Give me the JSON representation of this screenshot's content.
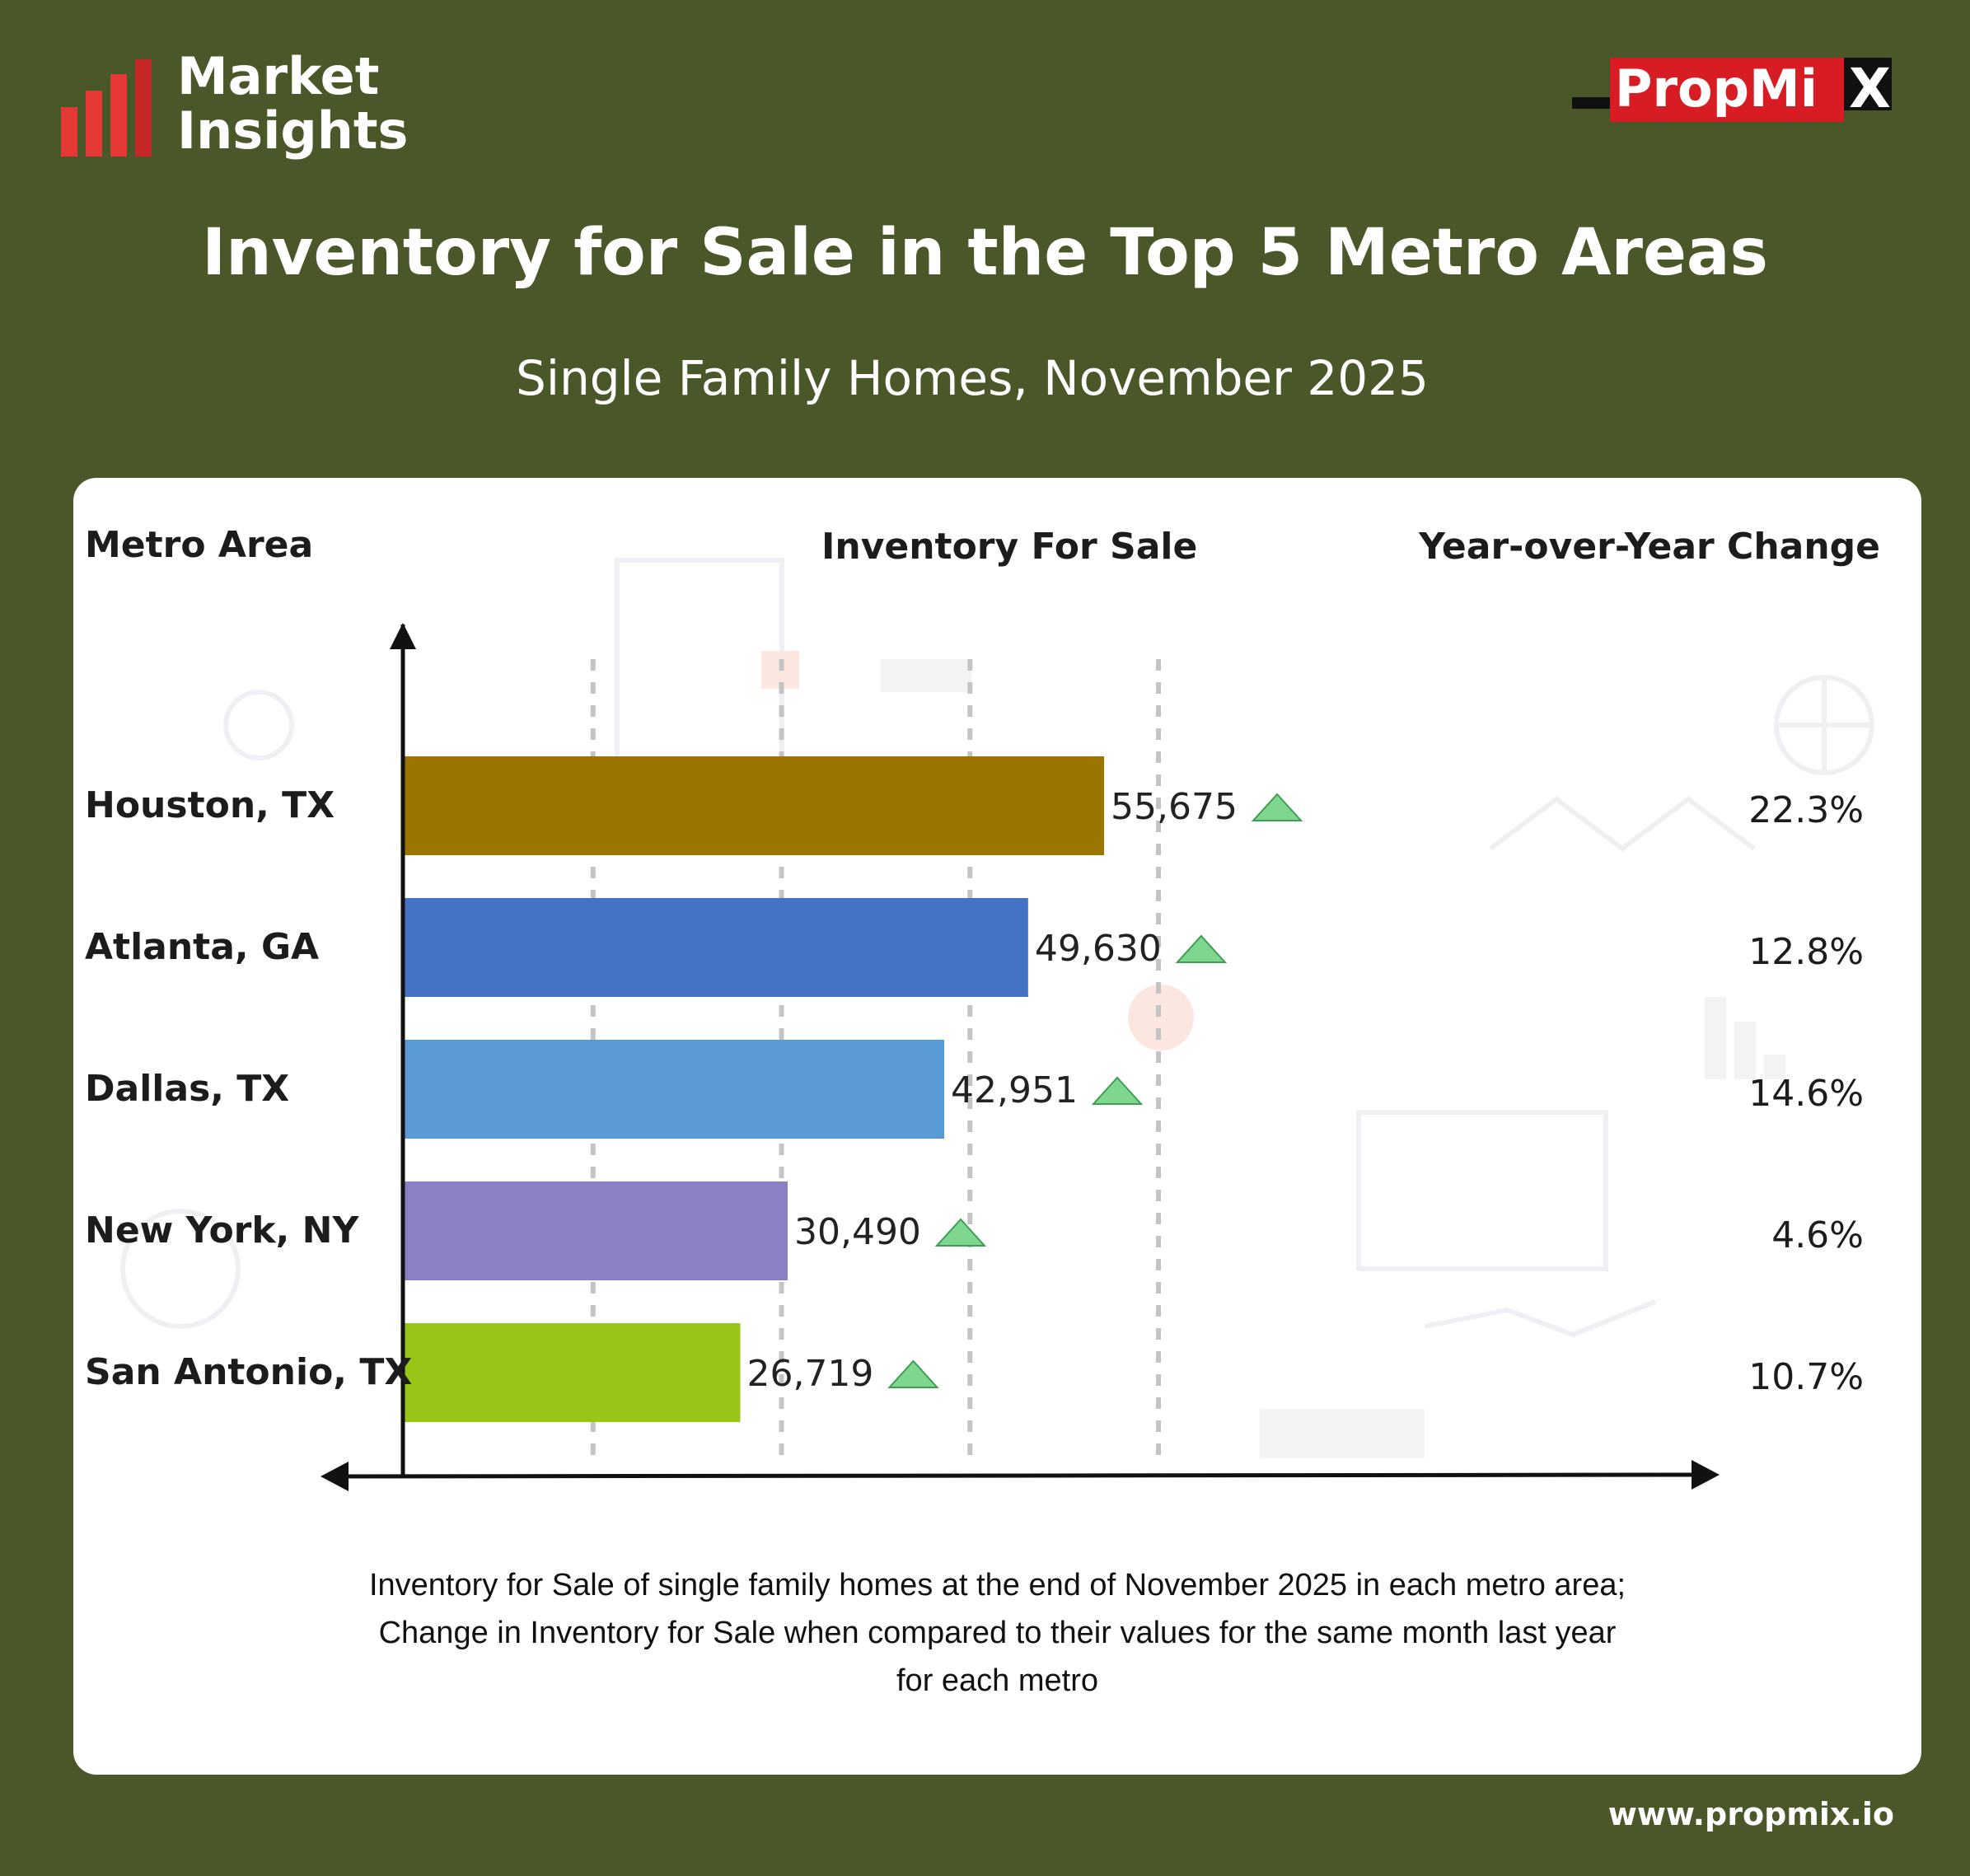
{
  "header": {
    "logo_line1": "Market",
    "logo_line2": "Insights",
    "brand_name": "PropMi",
    "brand_x": "X"
  },
  "title": "Inventory for Sale in the Top 5 Metro Areas",
  "subtitle": "Single Family Homes, November 2025",
  "columns": {
    "metro": "Metro Area",
    "inventory": "Inventory For Sale",
    "yoy": "Year-over-Year Change"
  },
  "chart_data": {
    "type": "bar",
    "orientation": "horizontal",
    "categories": [
      "Houston, TX",
      "Atlanta, GA",
      "Dallas, TX",
      "New York, NY",
      "San Antonio, TX"
    ],
    "values": [
      55675,
      49630,
      42951,
      30490,
      26719
    ],
    "value_labels": [
      "55,675",
      "49,630",
      "42,951",
      "30,490",
      "26,719"
    ],
    "yoy_change": [
      "22.3%",
      "12.8%",
      "14.6%",
      "4.6%",
      "10.7%"
    ],
    "trend": [
      "up",
      "up",
      "up",
      "up",
      "up"
    ],
    "colors": [
      "#9a7500",
      "#4472c4",
      "#5b9bd5",
      "#8b80c2",
      "#97c618"
    ],
    "xlim": [
      0,
      60000
    ],
    "grid": true
  },
  "footnote": {
    "line1": "Inventory for Sale of single family homes at the end of November 2025 in each metro area;",
    "line2": "Change in Inventory for Sale when compared to their values for the same month last year",
    "line3": "for each metro"
  },
  "url": "www.propmix.io",
  "colors": {
    "background": "#4a5729",
    "card": "#ffffff",
    "accent_red": "#e53935",
    "trend_up": "#7fd68f"
  }
}
